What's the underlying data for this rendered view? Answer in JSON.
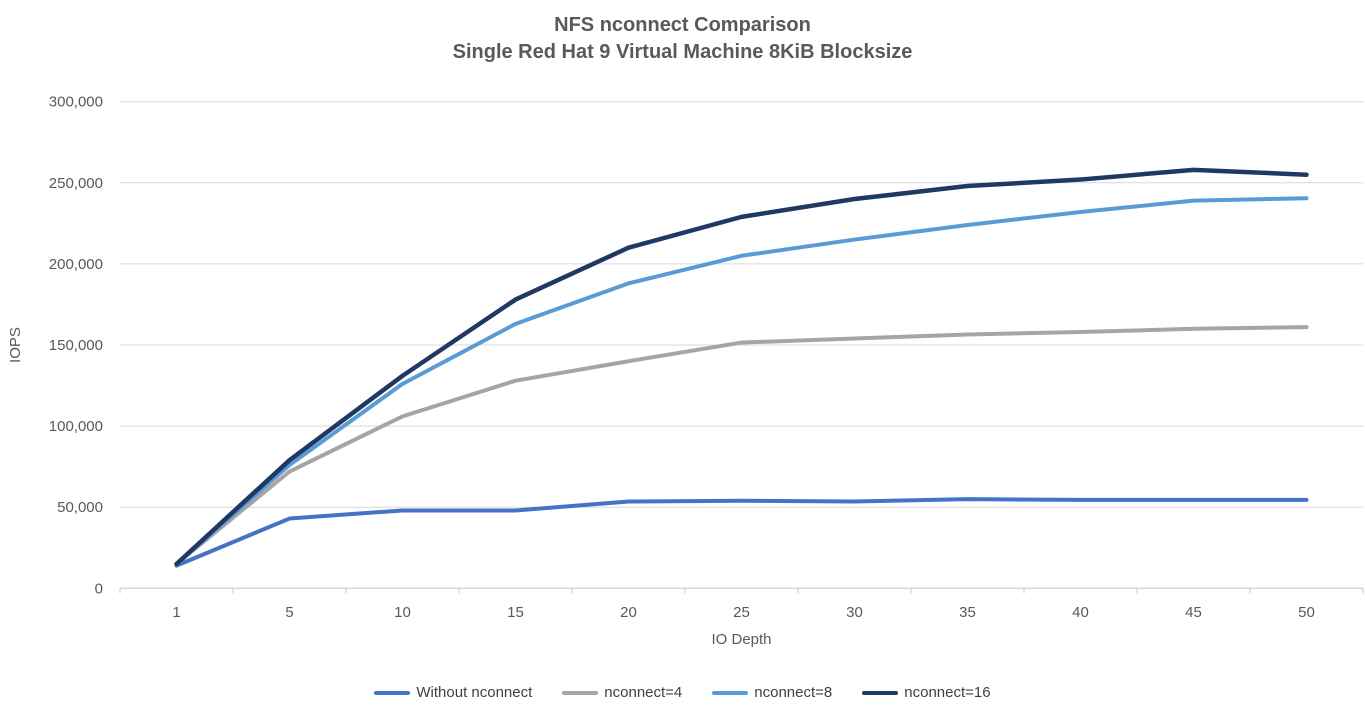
{
  "chart_data": {
    "type": "line",
    "title": "NFS nconnect Comparison",
    "subtitle": "Single Red Hat 9 Virtual Machine 8KiB Blocksize",
    "xlabel": "IO Depth",
    "ylabel": "IOPS",
    "categories": [
      1,
      5,
      10,
      15,
      20,
      25,
      30,
      35,
      40,
      45,
      50
    ],
    "series": [
      {
        "name": "Without nconnect",
        "color": "#4472C4",
        "stroke_width": 4,
        "values": [
          14000,
          43000,
          48000,
          48000,
          53500,
          54000,
          53500,
          55000,
          54500,
          54500,
          54500
        ]
      },
      {
        "name": "nconnect=4",
        "color": "#A5A5A5",
        "stroke_width": 4,
        "values": [
          15000,
          72000,
          106000,
          128000,
          140000,
          151500,
          154000,
          156500,
          158000,
          160000,
          161000
        ]
      },
      {
        "name": "nconnect=8",
        "color": "#5B9BD5",
        "stroke_width": 4,
        "values": [
          15000,
          76000,
          126000,
          163000,
          188000,
          205000,
          215000,
          224000,
          232000,
          239000,
          240500
        ]
      },
      {
        "name": "nconnect=16",
        "color": "#1F3864",
        "stroke_width": 4.5,
        "values": [
          15000,
          79000,
          131000,
          178000,
          210000,
          229000,
          240000,
          248000,
          252000,
          258000,
          255000
        ]
      }
    ],
    "ylim": [
      0,
      300000
    ],
    "ytick_step": 50000,
    "ytick_labels": [
      "0",
      "50,000",
      "100,000",
      "150,000",
      "200,000",
      "250,000",
      "300,000"
    ],
    "grid": true,
    "legend_position": "bottom"
  },
  "styles": {
    "grid_color": "#D9D9D9",
    "axis_color": "#C6C6C6",
    "tick_text_color": "#595959",
    "title_color": "#595959",
    "legend_text_color": "#404040"
  }
}
